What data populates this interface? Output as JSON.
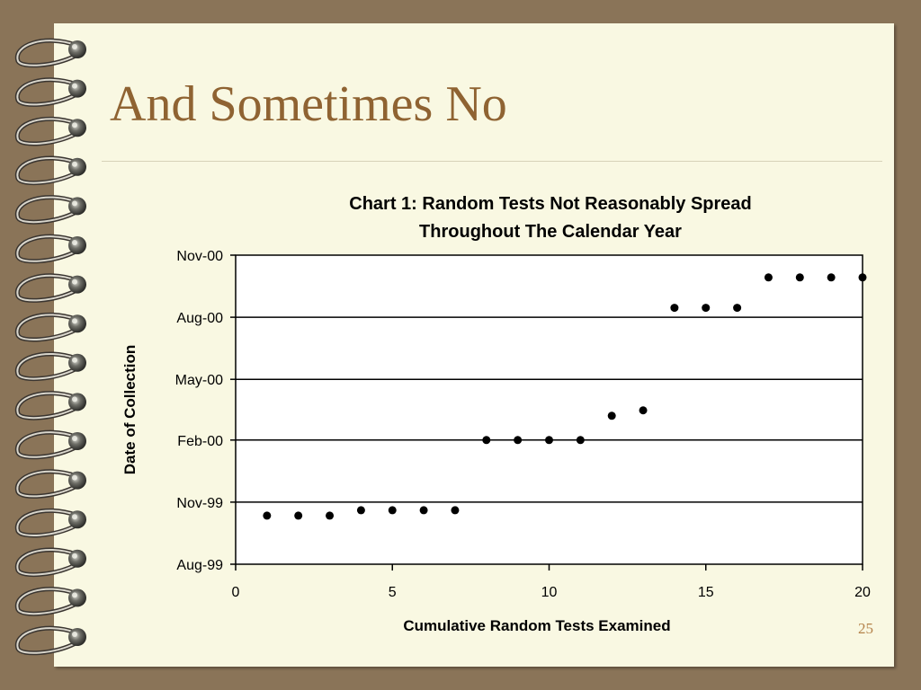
{
  "slide": {
    "title": "And Sometimes No",
    "page_number": "25"
  },
  "chart_data": {
    "type": "scatter",
    "title_lines": [
      "Chart 1: Random Tests Not Reasonably Spread",
      "Throughout The Calendar Year"
    ],
    "xlabel": "Cumulative Random Tests Examined",
    "ylabel": "Date of Collection",
    "x_ticks": [
      0,
      5,
      10,
      15,
      20
    ],
    "xlim": [
      0,
      20
    ],
    "y_ticks": [
      {
        "date": "1999-08-01",
        "label": "Aug-99"
      },
      {
        "date": "1999-11-01",
        "label": "Nov-99"
      },
      {
        "date": "2000-02-01",
        "label": "Feb-00"
      },
      {
        "date": "2000-05-01",
        "label": "May-00"
      },
      {
        "date": "2000-08-01",
        "label": "Aug-00"
      },
      {
        "date": "2000-11-01",
        "label": "Nov-00"
      }
    ],
    "ylim": [
      "1999-08-01",
      "2000-11-01"
    ],
    "grid": "horizontal",
    "legend": "none",
    "x": [
      1,
      2,
      3,
      4,
      5,
      6,
      7,
      8,
      9,
      10,
      11,
      12,
      13,
      14,
      15,
      16,
      17,
      18,
      19,
      20
    ],
    "y": [
      "1999-10-12",
      "1999-10-12",
      "1999-10-12",
      "1999-10-20",
      "1999-10-20",
      "1999-10-20",
      "1999-10-20",
      "2000-02-01",
      "2000-02-01",
      "2000-02-01",
      "2000-02-01",
      "2000-03-08",
      "2000-03-16",
      "2000-08-15",
      "2000-08-15",
      "2000-08-15",
      "2000-09-29",
      "2000-09-29",
      "2000-09-29",
      "2000-09-29"
    ]
  }
}
